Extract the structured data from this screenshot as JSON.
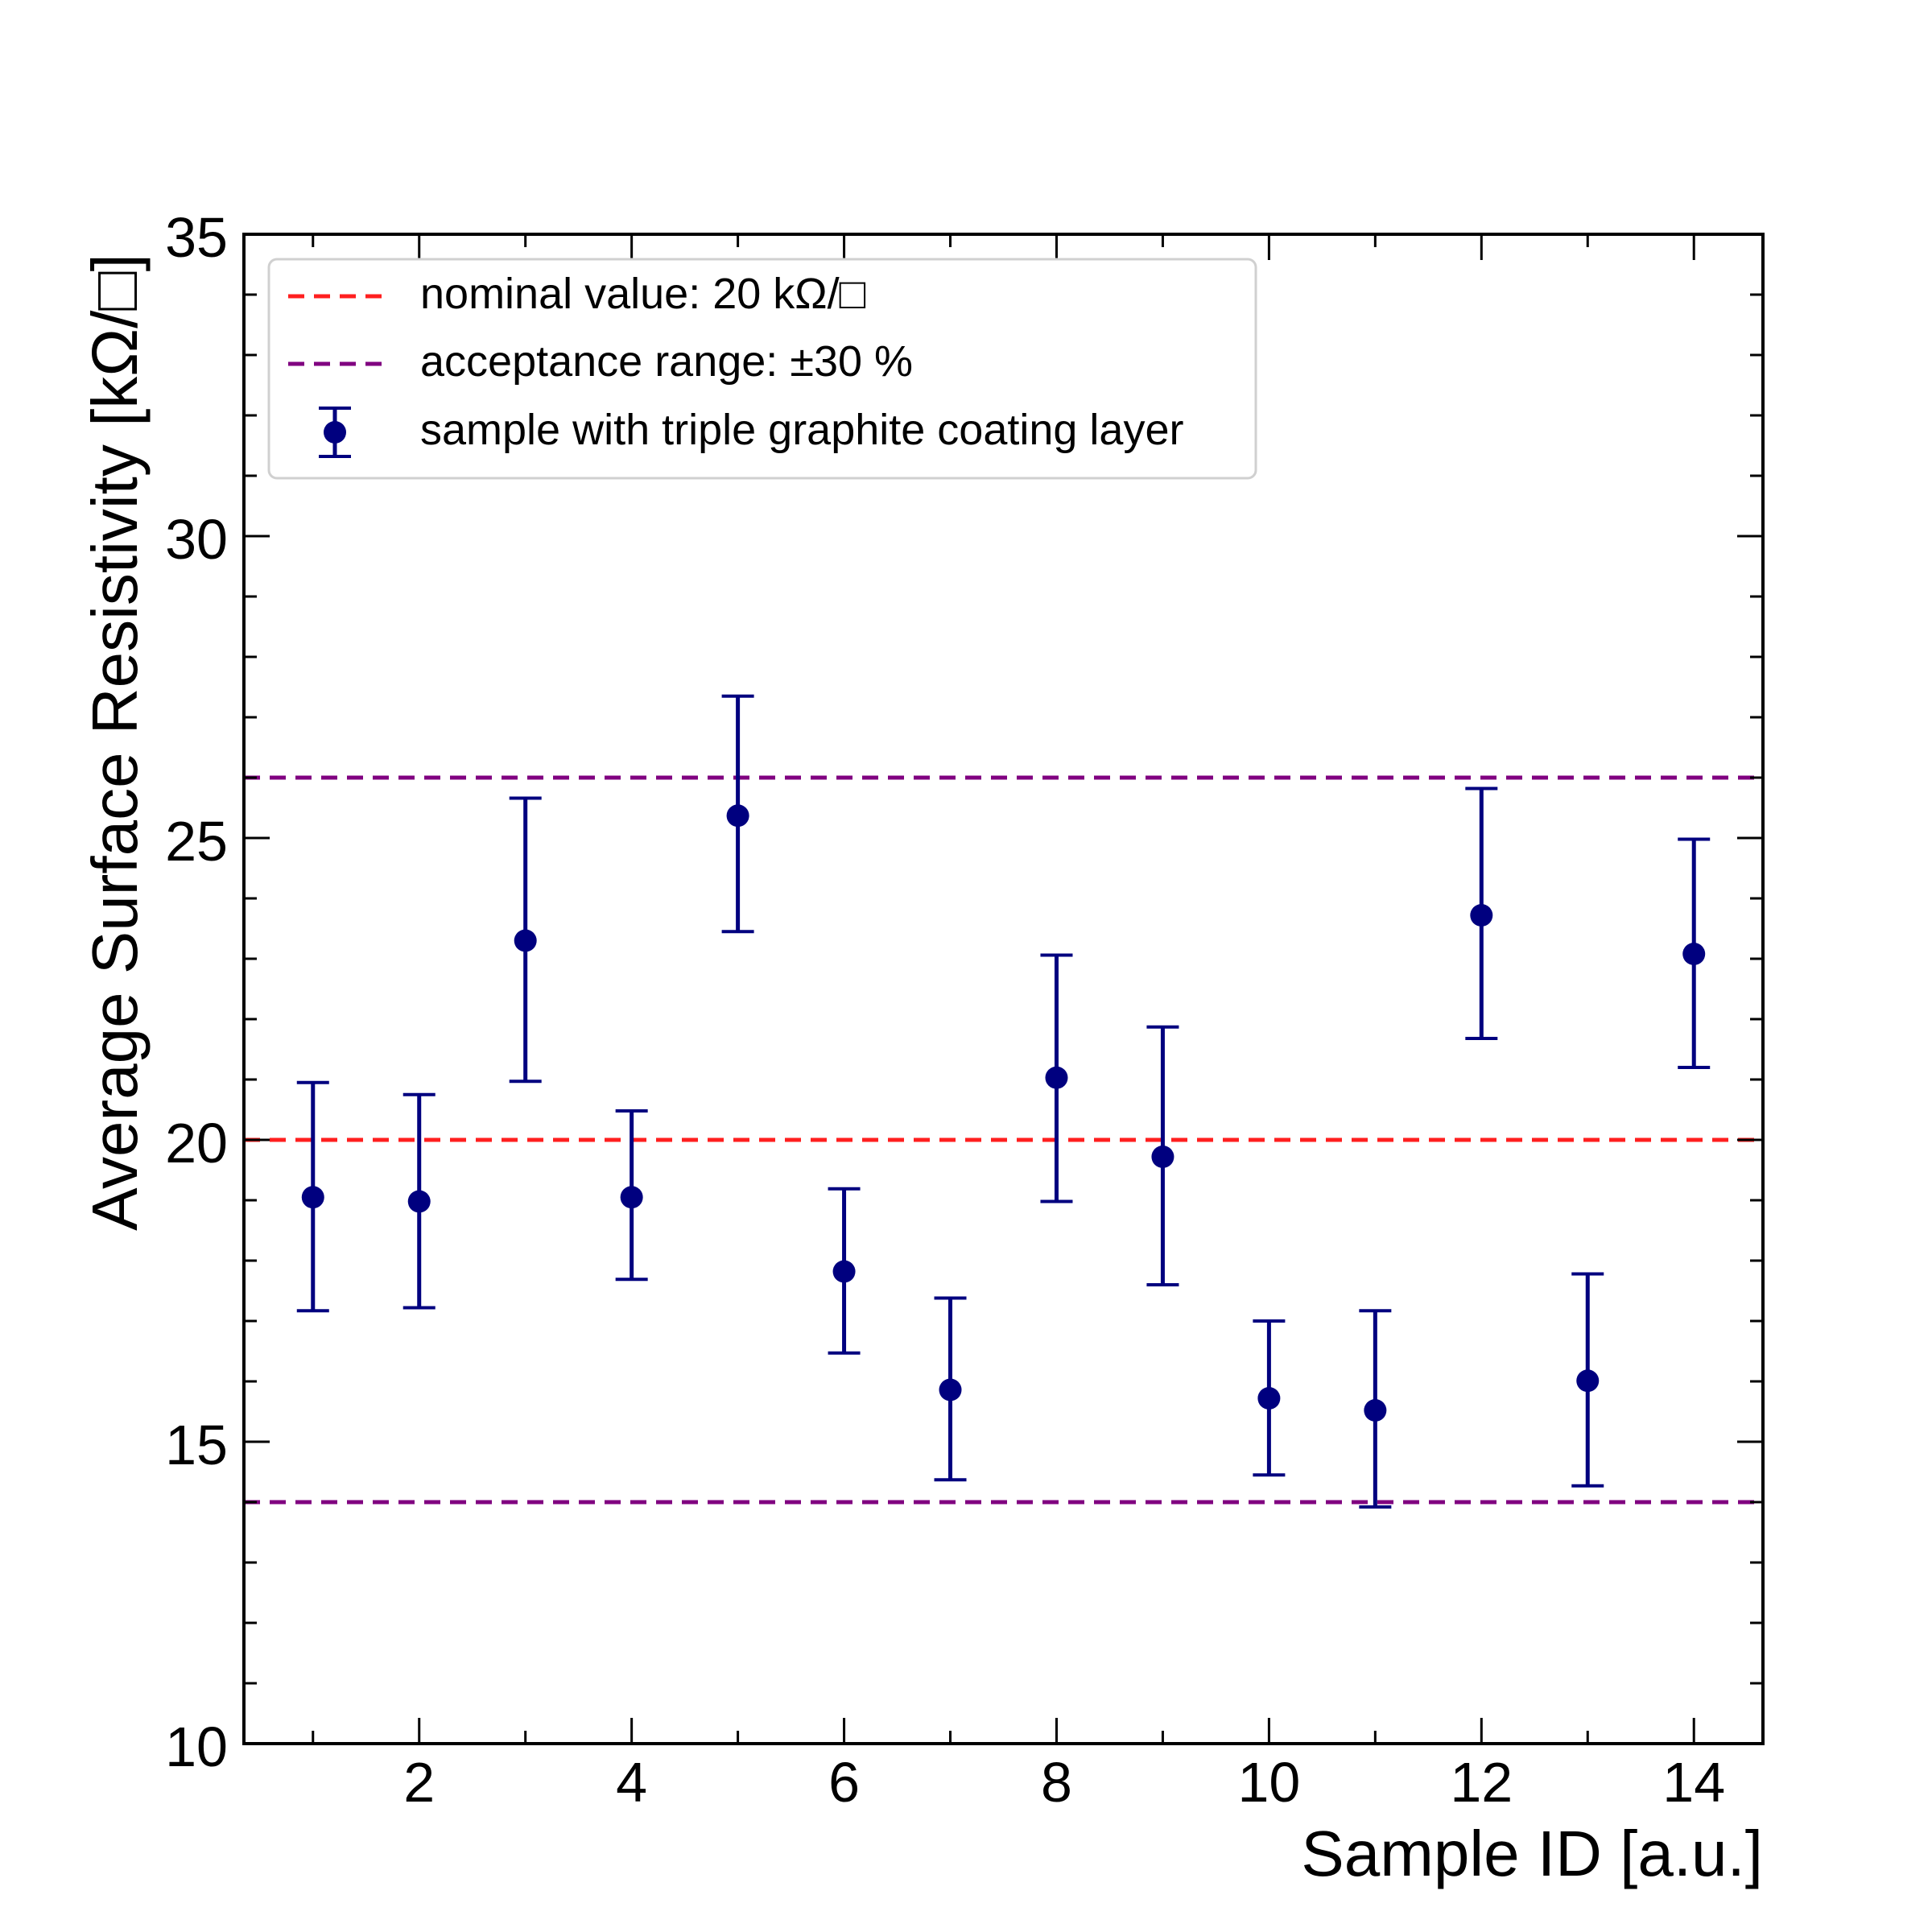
{
  "chart_data": {
    "type": "scatter",
    "title": "",
    "xlabel": "Sample ID [a.u.]",
    "ylabel": "Average Surface Resistivity [kΩ/□]",
    "xlim": [
      0.35,
      14.65
    ],
    "ylim": [
      10,
      35
    ],
    "x_ticks": [
      2,
      4,
      6,
      8,
      10,
      12,
      14
    ],
    "x_tick_labels": [
      "2",
      "4",
      "6",
      "8",
      "10",
      "12",
      "14"
    ],
    "y_ticks": [
      10,
      15,
      20,
      25,
      30,
      35
    ],
    "y_tick_labels": [
      "10",
      "15",
      "20",
      "25",
      "30",
      "35"
    ],
    "grid": false,
    "legend_position": "top-left",
    "reference_lines": [
      {
        "name": "nominal value: 20 kΩ/□",
        "y": [
          20
        ],
        "color": "#ff1f1f",
        "style": "dashed"
      },
      {
        "name": "acceptance range: ±30 %",
        "y": [
          26,
          14
        ],
        "color": "#800080",
        "style": "dashed"
      }
    ],
    "series": [
      {
        "name": "sample with triple graphite coating layer",
        "color": "#00007f",
        "x": [
          1,
          2,
          3,
          4,
          5,
          6,
          7,
          8,
          9,
          10,
          11,
          12,
          13,
          14
        ],
        "y": [
          19.05,
          18.98,
          23.3,
          19.05,
          25.37,
          17.82,
          15.86,
          21.03,
          19.72,
          15.72,
          15.52,
          23.72,
          16.01,
          23.08
        ],
        "err_low": [
          1.88,
          1.76,
          2.33,
          1.36,
          1.92,
          1.35,
          1.49,
          2.05,
          2.12,
          1.27,
          1.6,
          2.04,
          1.74,
          1.88
        ],
        "err_high": [
          1.9,
          1.77,
          2.36,
          1.43,
          1.98,
          1.37,
          1.52,
          2.03,
          2.15,
          1.28,
          1.65,
          2.1,
          1.77,
          1.9
        ]
      }
    ]
  }
}
